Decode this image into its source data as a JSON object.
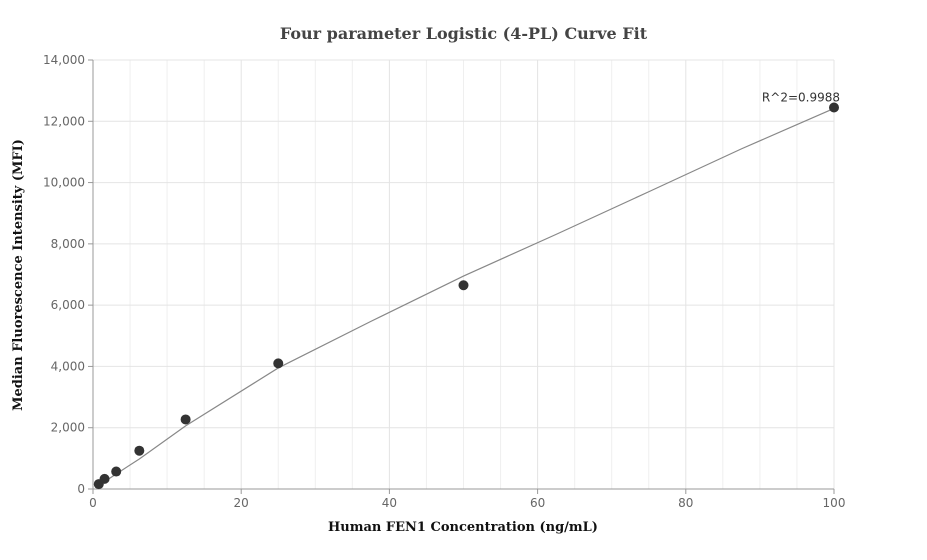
{
  "chart_data": {
    "type": "scatter",
    "title": "Four parameter Logistic (4-PL) Curve Fit",
    "xlabel": "Human FEN1 Concentration (ng/mL)",
    "ylabel": "Median Fluorescence Intensity (MFI)",
    "xlim": [
      0,
      100
    ],
    "ylim": [
      0,
      14000
    ],
    "x_ticks": [
      0,
      20,
      40,
      60,
      80,
      100
    ],
    "y_ticks": [
      0,
      2000,
      4000,
      6000,
      8000,
      10000,
      12000,
      14000
    ],
    "x_tick_labels": [
      "0",
      "20",
      "40",
      "60",
      "80",
      "100"
    ],
    "y_tick_labels": [
      "0",
      "2,000",
      "4,000",
      "6,000",
      "8,000",
      "10,000",
      "12,000",
      "14,000"
    ],
    "grid": true,
    "legend": "none",
    "series": [
      {
        "type": "scatter",
        "x": [
          0.78,
          1.56,
          3.13,
          6.25,
          12.5,
          25,
          50,
          100
        ],
        "y": [
          160,
          330,
          570,
          1250,
          2270,
          4100,
          6650,
          12450
        ],
        "color": "#333333"
      },
      {
        "type": "line",
        "x": [
          0.78,
          1.56,
          3.13,
          6.25,
          12.5,
          25,
          37.5,
          50,
          62.5,
          75,
          87.5,
          100
        ],
        "y": [
          110,
          240,
          490,
          980,
          2060,
          3950,
          5470,
          6950,
          8310,
          9700,
          11100,
          12420
        ],
        "color": "#888888"
      }
    ],
    "annotations": [
      {
        "text": "R^2=0.9988",
        "x": 100,
        "y": 12450
      }
    ]
  }
}
